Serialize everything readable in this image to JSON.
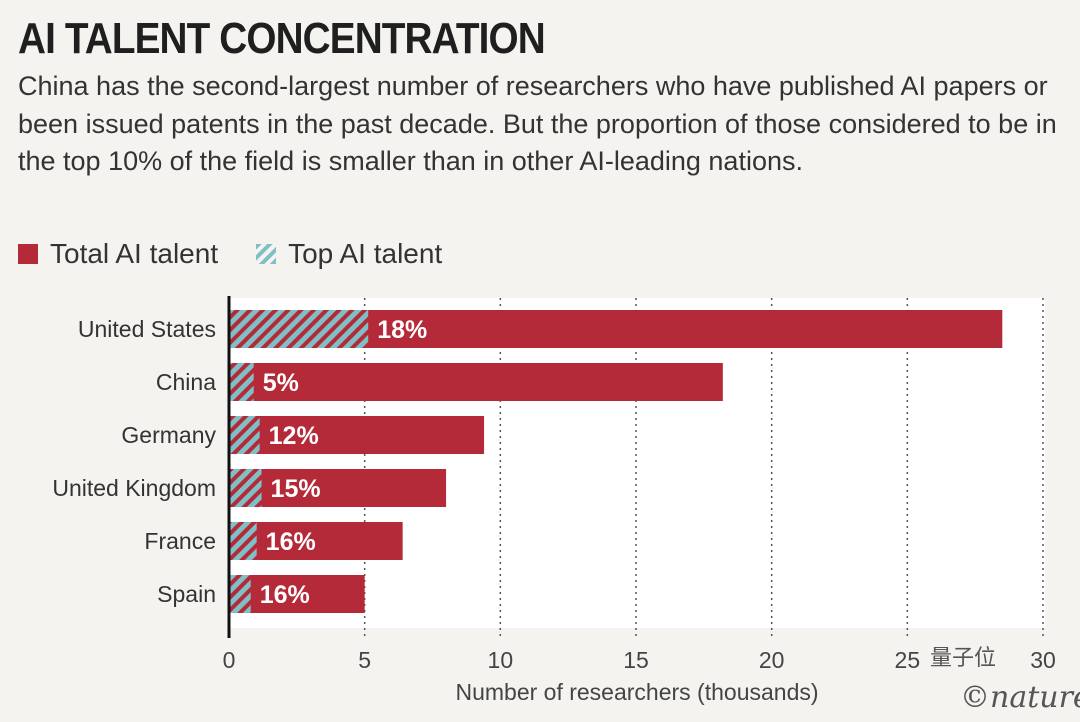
{
  "header": {
    "title": "AI TALENT CONCENTRATION",
    "subtitle": "China has the second-largest number of researchers who have published AI papers or been issued patents in the past decade. But the proportion of those considered to be in the top 10% of the field is smaller than in other AI-leading nations."
  },
  "legend": {
    "total_label": "Total AI talent",
    "top_label": "Top AI talent"
  },
  "colors": {
    "total": "#b52a38",
    "top": "#7fbfc6"
  },
  "watermark": {
    "brand": "量子位",
    "source": "©nature"
  },
  "chart_data": {
    "type": "bar",
    "orientation": "horizontal",
    "categories": [
      "United States",
      "China",
      "Germany",
      "United Kingdom",
      "France",
      "Spain"
    ],
    "series": [
      {
        "name": "Total AI talent",
        "values": [
          28.5,
          18.2,
          9.4,
          8.0,
          6.4,
          5.0
        ]
      },
      {
        "name": "Top AI talent",
        "values": [
          5.13,
          0.91,
          1.13,
          1.2,
          1.02,
          0.8
        ]
      }
    ],
    "percent_labels": [
      "18%",
      "5%",
      "12%",
      "15%",
      "16%",
      "16%"
    ],
    "xlabel": "Number of researchers (thousands)",
    "ylabel": "",
    "xlim": [
      0,
      30
    ],
    "xticks": [
      0,
      5,
      10,
      15,
      20,
      25,
      30
    ],
    "grid": true
  }
}
